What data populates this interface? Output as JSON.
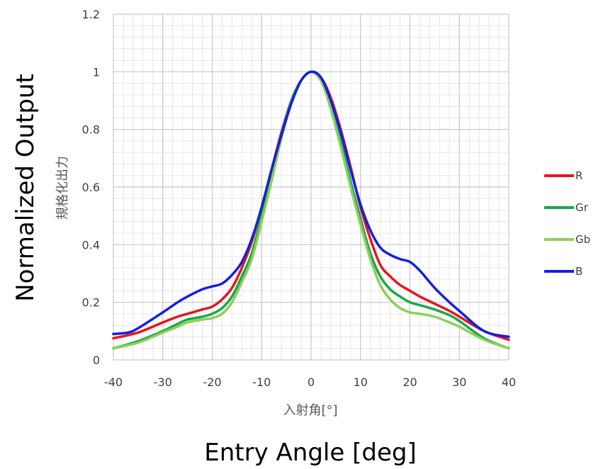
{
  "chart_data": {
    "type": "line",
    "title": "",
    "xlabel": "Entry Angle [deg]",
    "xlabel_sub": "入射角[°]",
    "ylabel": "Normalized Output",
    "ylabel_sub": "規格化出力",
    "xlim": [
      -40,
      40
    ],
    "ylim": [
      0,
      1.2
    ],
    "x_ticks": [
      "-40",
      "-30",
      "-20",
      "-10",
      "0",
      "10",
      "20",
      "30",
      "40"
    ],
    "y_ticks": [
      "0",
      "0.2",
      "0.4",
      "0.6",
      "0.8",
      "1",
      "1.2"
    ],
    "grid": true,
    "legend_position": "right",
    "series": [
      {
        "name": "R",
        "color": "#e8141c",
        "x": [
          -40,
          -35,
          -30,
          -27,
          -25,
          -22,
          -20,
          -18,
          -16,
          -14,
          -12,
          -10,
          -8,
          -6,
          -4,
          -2,
          0,
          2,
          4,
          6,
          8,
          10,
          12,
          14,
          16,
          18,
          20,
          22,
          25,
          28,
          30,
          35,
          40
        ],
        "y": [
          0.075,
          0.095,
          0.13,
          0.15,
          0.16,
          0.175,
          0.185,
          0.21,
          0.25,
          0.32,
          0.41,
          0.53,
          0.66,
          0.79,
          0.9,
          0.97,
          1.0,
          0.98,
          0.91,
          0.8,
          0.67,
          0.53,
          0.42,
          0.33,
          0.29,
          0.26,
          0.24,
          0.22,
          0.195,
          0.17,
          0.15,
          0.1,
          0.07
        ]
      },
      {
        "name": "Gr",
        "color": "#19a84b",
        "x": [
          -40,
          -35,
          -30,
          -27,
          -25,
          -22,
          -20,
          -18,
          -16,
          -14,
          -12,
          -10,
          -8,
          -6,
          -4,
          -2,
          0,
          2,
          4,
          6,
          8,
          10,
          12,
          14,
          16,
          18,
          20,
          22,
          25,
          28,
          30,
          35,
          40
        ],
        "y": [
          0.04,
          0.065,
          0.1,
          0.125,
          0.14,
          0.15,
          0.16,
          0.18,
          0.22,
          0.29,
          0.37,
          0.5,
          0.64,
          0.78,
          0.9,
          0.97,
          1.0,
          0.97,
          0.88,
          0.76,
          0.62,
          0.49,
          0.37,
          0.29,
          0.245,
          0.22,
          0.2,
          0.19,
          0.175,
          0.155,
          0.135,
          0.075,
          0.04
        ]
      },
      {
        "name": "Gb",
        "color": "#8ccf5a",
        "x": [
          -40,
          -35,
          -30,
          -27,
          -25,
          -22,
          -20,
          -18,
          -16,
          -14,
          -12,
          -10,
          -8,
          -6,
          -4,
          -2,
          0,
          2,
          4,
          6,
          8,
          10,
          12,
          14,
          16,
          18,
          20,
          22,
          25,
          28,
          30,
          35,
          40
        ],
        "y": [
          0.04,
          0.06,
          0.095,
          0.115,
          0.13,
          0.14,
          0.145,
          0.16,
          0.2,
          0.27,
          0.35,
          0.48,
          0.62,
          0.77,
          0.89,
          0.97,
          1.0,
          0.97,
          0.87,
          0.74,
          0.6,
          0.47,
          0.35,
          0.26,
          0.21,
          0.18,
          0.165,
          0.16,
          0.15,
          0.13,
          0.115,
          0.07,
          0.04
        ]
      },
      {
        "name": "B",
        "color": "#1420e0",
        "x": [
          -40,
          -37,
          -35,
          -30,
          -27,
          -25,
          -22,
          -20,
          -18,
          -16,
          -14,
          -12,
          -10,
          -8,
          -6,
          -4,
          -2,
          0,
          2,
          4,
          6,
          8,
          10,
          12,
          14,
          16,
          18,
          20,
          22,
          25,
          28,
          30,
          35,
          40
        ],
        "y": [
          0.09,
          0.095,
          0.11,
          0.165,
          0.2,
          0.22,
          0.245,
          0.255,
          0.265,
          0.295,
          0.34,
          0.42,
          0.53,
          0.66,
          0.78,
          0.89,
          0.97,
          1.0,
          0.98,
          0.9,
          0.79,
          0.66,
          0.54,
          0.45,
          0.39,
          0.365,
          0.35,
          0.34,
          0.31,
          0.25,
          0.2,
          0.17,
          0.1,
          0.08
        ]
      }
    ]
  }
}
